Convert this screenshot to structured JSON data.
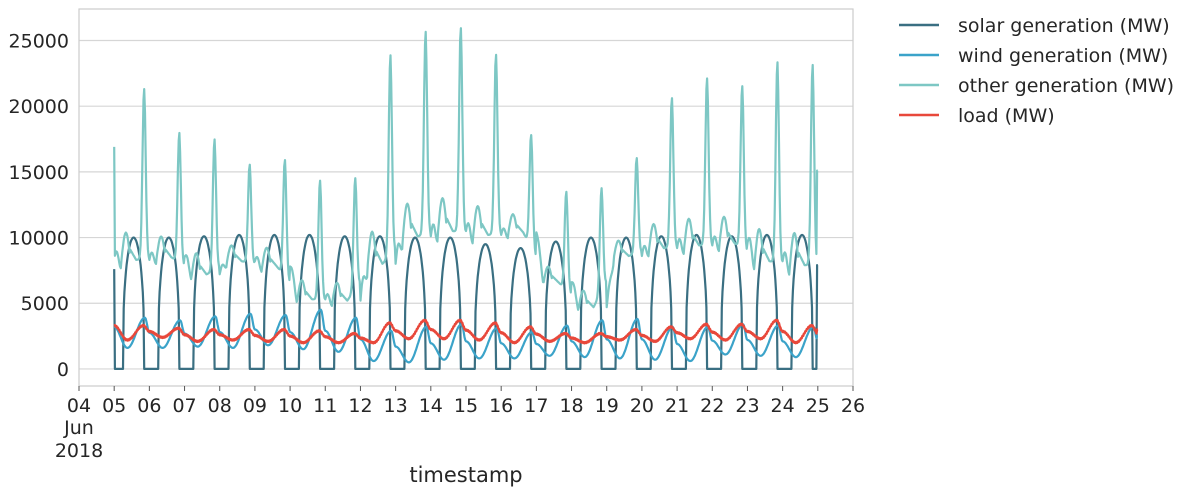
{
  "chart_data": {
    "type": "line",
    "xlabel": "timestamp",
    "ylabel": "",
    "xlim": [
      "2018-06-04",
      "2018-06-26"
    ],
    "ylim": [
      -1300,
      27400
    ],
    "grid": "horizontal",
    "legend_placement": "outside-top-right",
    "x_ticks": [
      "04",
      "05",
      "06",
      "07",
      "08",
      "09",
      "10",
      "11",
      "12",
      "13",
      "14",
      "15",
      "16",
      "17",
      "18",
      "19",
      "20",
      "21",
      "22",
      "23",
      "24",
      "25",
      "26"
    ],
    "x_tick_sublabels": [
      "Jun",
      "2018"
    ],
    "y_ticks": [
      "0",
      "5000",
      "10000",
      "15000",
      "20000",
      "25000"
    ],
    "days": [
      "2018-06-05",
      "2018-06-06",
      "2018-06-07",
      "2018-06-08",
      "2018-06-09",
      "2018-06-10",
      "2018-06-11",
      "2018-06-12",
      "2018-06-13",
      "2018-06-14",
      "2018-06-15",
      "2018-06-16",
      "2018-06-17",
      "2018-06-18",
      "2018-06-19",
      "2018-06-20",
      "2018-06-21",
      "2018-06-22",
      "2018-06-23",
      "2018-06-24"
    ],
    "series": [
      {
        "name": "solar generation (MW)",
        "color": "#3a6f82",
        "start_value": 7600,
        "end_value": 7900,
        "daily_peak": [
          10000,
          10000,
          10100,
          10200,
          10200,
          10200,
          10100,
          10100,
          10000,
          10000,
          9500,
          9200,
          9700,
          10000,
          10000,
          10100,
          10200,
          10100,
          10200,
          10200
        ]
      },
      {
        "name": "wind generation (MW)",
        "color": "#3ba3c9",
        "start_value": 3200,
        "end_value": 2500,
        "daily_peak": [
          3900,
          3700,
          4000,
          4200,
          4100,
          4500,
          3900,
          2900,
          3200,
          3400,
          3100,
          2800,
          3300,
          3700,
          3800,
          3200,
          3200,
          3400,
          3300,
          3200
        ],
        "daily_min": [
          1600,
          1600,
          1700,
          1600,
          1800,
          1500,
          1300,
          600,
          500,
          700,
          800,
          800,
          1000,
          900,
          800,
          700,
          600,
          1100,
          1000,
          900
        ]
      },
      {
        "name": "other generation (MW)",
        "color": "#7dc7c4",
        "start_value": 16900,
        "end_value": 15100,
        "daily_peak": [
          21300,
          18400,
          17200,
          15700,
          16700,
          14400,
          13700,
          23300,
          25600,
          26100,
          23900,
          19000,
          14100,
          12600,
          15900,
          20600,
          22100,
          22000,
          23500,
          23200
        ],
        "daily_min": [
          8300,
          8500,
          7200,
          8200,
          7800,
          5300,
          5200,
          8000,
          10100,
          10500,
          10200,
          10400,
          6600,
          4700,
          8600,
          9200,
          9400,
          9600,
          8200,
          7900
        ]
      },
      {
        "name": "load (MW)",
        "color": "#e8483b",
        "start_value": 3300,
        "end_value": 3000,
        "daily_peak": [
          3300,
          3100,
          3000,
          3000,
          3000,
          2900,
          2700,
          3500,
          3700,
          3700,
          3500,
          3200,
          2700,
          2700,
          3000,
          3200,
          3400,
          3400,
          3700,
          3300
        ],
        "daily_min": [
          2200,
          2400,
          2100,
          2200,
          2100,
          2000,
          2000,
          2000,
          2300,
          2300,
          2200,
          2000,
          2100,
          2000,
          2200,
          2100,
          2300,
          2200,
          2300,
          2000
        ]
      }
    ]
  }
}
